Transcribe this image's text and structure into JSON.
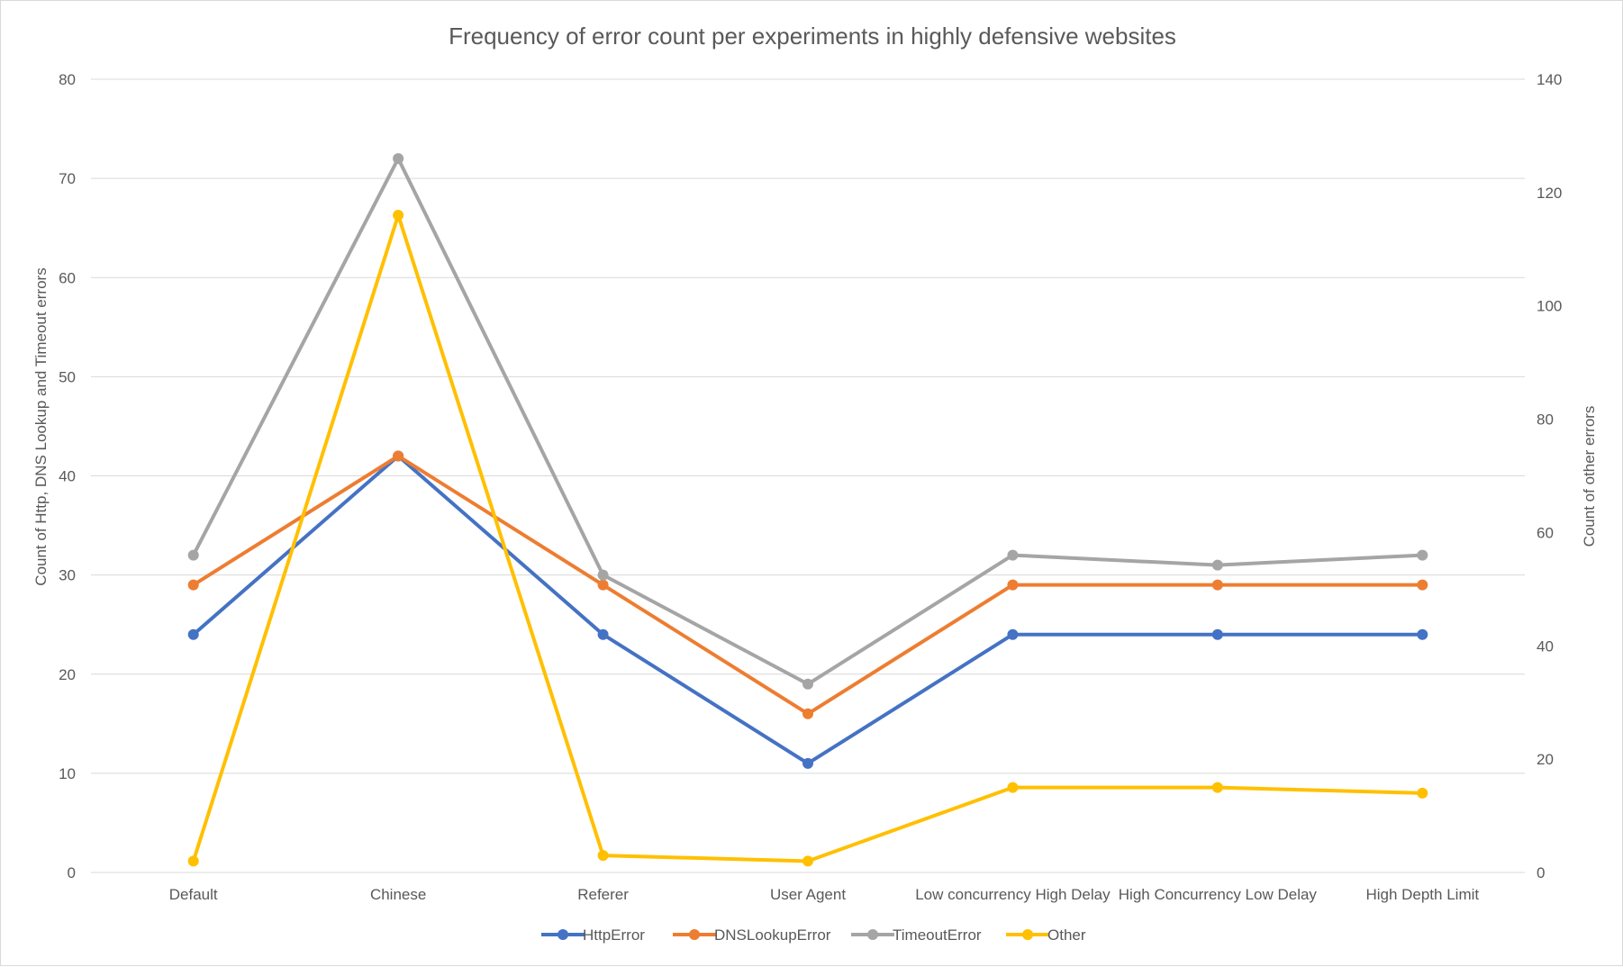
{
  "chart_data": {
    "type": "line",
    "title": "Frequency of error count per experiments in highly defensive websites",
    "categories": [
      "Default",
      "Chinese",
      "Referer",
      "User Agent",
      "Low concurrency High Delay",
      "High Concurrency Low Delay",
      "High Depth Limit"
    ],
    "y_left": {
      "label": "Count of Http, DNS Lookup and Timeout errors",
      "range": [
        0,
        80
      ],
      "ticks": [
        "0",
        "10",
        "20",
        "30",
        "40",
        "50",
        "60",
        "70",
        "80"
      ]
    },
    "y_right": {
      "label": "Count of other errors",
      "range": [
        0,
        140
      ],
      "ticks": [
        "0",
        "20",
        "40",
        "60",
        "80",
        "100",
        "120",
        "140"
      ]
    },
    "grid": true,
    "legend_position": "bottom",
    "series": [
      {
        "name": "HttpError",
        "color": "#4472C4",
        "axis": "left",
        "values": [
          24,
          42,
          24,
          11,
          24,
          24,
          24
        ]
      },
      {
        "name": "DNSLookupError",
        "color": "#ED7D31",
        "axis": "left",
        "values": [
          29,
          42,
          29,
          16,
          29,
          29,
          29
        ]
      },
      {
        "name": "TimeoutError",
        "color": "#A5A5A5",
        "axis": "left",
        "values": [
          32,
          72,
          30,
          19,
          32,
          31,
          32
        ]
      },
      {
        "name": "Other",
        "color": "#FFC000",
        "axis": "right",
        "values": [
          2,
          116,
          3,
          2,
          15,
          15,
          14
        ]
      }
    ]
  }
}
